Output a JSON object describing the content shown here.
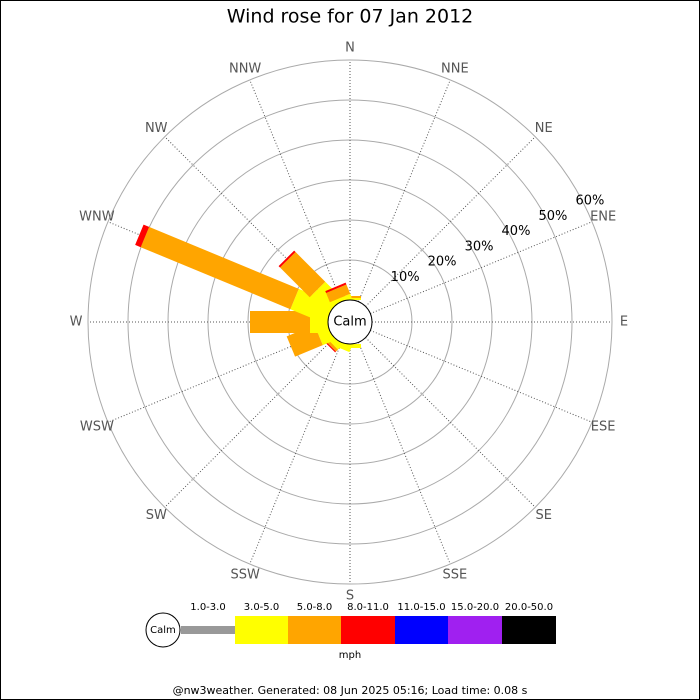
{
  "chart_data": {
    "type": "windrose",
    "title": "Wind rose for 07 Jan 2012",
    "directions": [
      "N",
      "NNE",
      "NE",
      "ENE",
      "E",
      "ESE",
      "SE",
      "SSE",
      "S",
      "SSW",
      "SW",
      "WSW",
      "W",
      "WNW",
      "NW",
      "NNW"
    ],
    "series": [
      {
        "name": "1.0-3.0",
        "color": "#999999",
        "values": [
          0,
          0,
          0,
          0,
          0,
          0,
          0,
          0,
          0,
          0,
          0,
          0,
          0,
          0,
          0,
          0
        ]
      },
      {
        "name": "3.0-5.0",
        "color": "#ffff00",
        "values": [
          0.5,
          0,
          0,
          0,
          0,
          0,
          0,
          0,
          1,
          1.5,
          1.5,
          3,
          4.5,
          9.5,
          6,
          1
        ]
      },
      {
        "name": "5.0-8.0",
        "color": "#ffa500",
        "values": [
          0.5,
          0,
          0,
          0,
          0,
          0,
          0,
          0,
          0,
          0,
          0.7,
          7.5,
          15,
          40.5,
          10.5,
          2.5
        ]
      },
      {
        "name": "8.0-11.0",
        "color": "#ff0000",
        "values": [
          0,
          0,
          0,
          0,
          0,
          0,
          0,
          0,
          0,
          0,
          0.3,
          0,
          0,
          1.5,
          0.5,
          0.5
        ]
      },
      {
        "name": "11.0-15.0",
        "color": "#0000ff",
        "values": [
          0,
          0,
          0,
          0,
          0,
          0,
          0,
          0,
          0,
          0,
          0,
          0,
          0,
          0,
          0,
          0
        ]
      },
      {
        "name": "15.0-20.0",
        "color": "#a020f0",
        "values": [
          0,
          0,
          0,
          0,
          0,
          0,
          0,
          0,
          0,
          0,
          0,
          0,
          0,
          0,
          0,
          0
        ]
      },
      {
        "name": "20.0-50.0",
        "color": "#000000",
        "values": [
          0,
          0,
          0,
          0,
          0,
          0,
          0,
          0,
          0,
          0,
          0,
          0,
          0,
          0,
          0,
          0
        ]
      }
    ],
    "rlim": [
      0,
      60
    ],
    "rticks": [
      {
        "value": 10,
        "label": "10%"
      },
      {
        "value": 20,
        "label": "20%"
      },
      {
        "value": 30,
        "label": "30%"
      },
      {
        "value": 40,
        "label": "40%"
      },
      {
        "value": 50,
        "label": "50%"
      },
      {
        "value": 60,
        "label": "60%"
      }
    ],
    "calm_label": "Calm",
    "unit_label": "mph",
    "footer": "@nw3weather. Generated: 08 Jun 2025 05:16; Load time: 0.08 s"
  }
}
